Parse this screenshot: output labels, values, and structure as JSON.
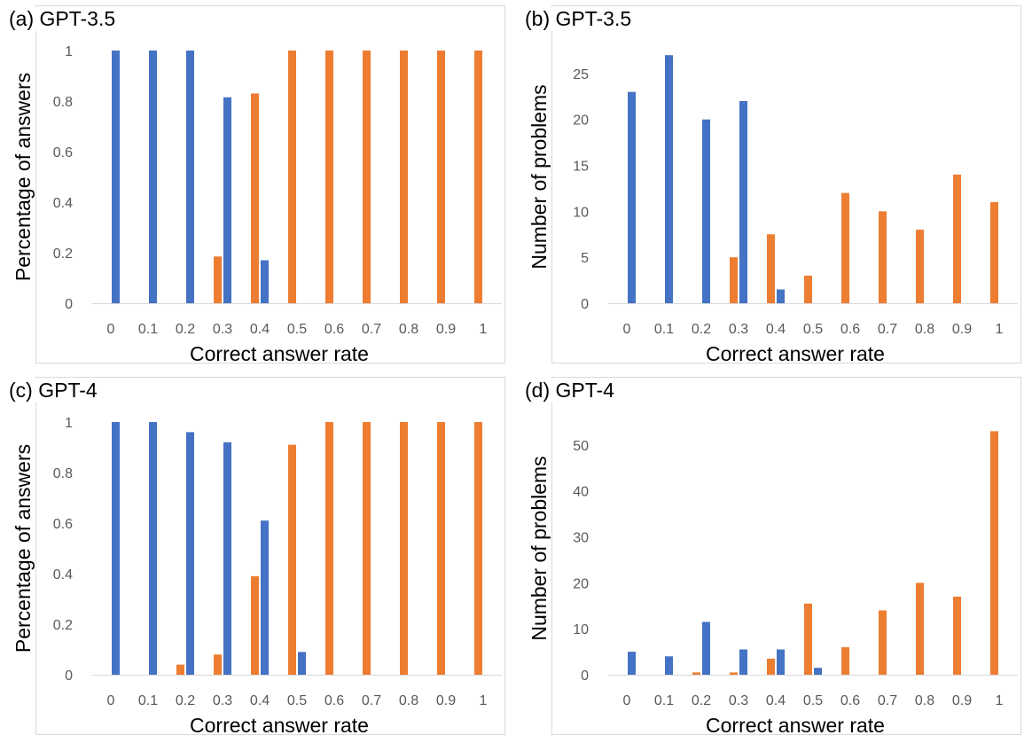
{
  "colors": {
    "blue": "#4472c4",
    "orange": "#ed7d31",
    "axis": "#d9d9d9"
  },
  "chart_data": [
    {
      "panel": "a",
      "type": "bar",
      "title": "(a) GPT-3.5",
      "xlabel": "Correct answer rate",
      "ylabel": "Percentage of answers",
      "categories": [
        "0",
        "0.1",
        "0.2",
        "0.3",
        "0.4",
        "0.5",
        "0.6",
        "0.7",
        "0.8",
        "0.9",
        "1"
      ],
      "yticks": [
        "0",
        "0.2",
        "0.4",
        "0.6",
        "0.8",
        "1"
      ],
      "ylim": [
        0,
        1
      ],
      "grid": false,
      "legend": "none",
      "series": [
        {
          "color": "#ed7d31",
          "values": [
            0,
            0,
            0,
            0.185,
            0.83,
            1,
            1,
            1,
            1,
            1,
            1
          ]
        },
        {
          "color": "#4472c4",
          "values": [
            1,
            1,
            1,
            0.815,
            0.17,
            0,
            0,
            0,
            0,
            0,
            0
          ]
        }
      ]
    },
    {
      "panel": "b",
      "type": "bar",
      "title": "(b) GPT-3.5",
      "xlabel": "Correct answer rate",
      "ylabel": "Number of problems",
      "categories": [
        "0",
        "0.1",
        "0.2",
        "0.3",
        "0.4",
        "0.5",
        "0.6",
        "0.7",
        "0.8",
        "0.9",
        "1"
      ],
      "yticks": [
        "0",
        "5",
        "10",
        "15",
        "20",
        "25"
      ],
      "ylim": [
        0,
        27.5
      ],
      "grid": false,
      "legend": "none",
      "series": [
        {
          "color": "#ed7d31",
          "values": [
            0,
            0,
            0,
            5,
            7.5,
            3,
            12,
            10,
            8,
            14,
            11
          ]
        },
        {
          "color": "#4472c4",
          "values": [
            23,
            27,
            20,
            22,
            1.5,
            0,
            0,
            0,
            0,
            0,
            0
          ]
        }
      ]
    },
    {
      "panel": "c",
      "type": "bar",
      "title": "(c) GPT-4",
      "xlabel": "Correct answer rate",
      "ylabel": "Percentage of answers",
      "categories": [
        "0",
        "0.1",
        "0.2",
        "0.3",
        "0.4",
        "0.5",
        "0.6",
        "0.7",
        "0.8",
        "0.9",
        "1"
      ],
      "yticks": [
        "0",
        "0.2",
        "0.4",
        "0.6",
        "0.8",
        "1"
      ],
      "ylim": [
        0,
        1
      ],
      "grid": false,
      "legend": "none",
      "series": [
        {
          "color": "#ed7d31",
          "values": [
            0,
            0,
            0.04,
            0.08,
            0.39,
            0.91,
            1,
            1,
            1,
            1,
            1
          ]
        },
        {
          "color": "#4472c4",
          "values": [
            1,
            1,
            0.96,
            0.92,
            0.61,
            0.09,
            0,
            0,
            0,
            0,
            0
          ]
        }
      ]
    },
    {
      "panel": "d",
      "type": "bar",
      "title": "(d) GPT-4",
      "xlabel": "Correct answer rate",
      "ylabel": "Number of problems",
      "categories": [
        "0",
        "0.1",
        "0.2",
        "0.3",
        "0.4",
        "0.5",
        "0.6",
        "0.7",
        "0.8",
        "0.9",
        "1"
      ],
      "yticks": [
        "0",
        "10",
        "20",
        "30",
        "40",
        "50"
      ],
      "ylim": [
        0,
        55
      ],
      "grid": false,
      "legend": "none",
      "series": [
        {
          "color": "#ed7d31",
          "values": [
            0,
            0,
            0.5,
            0.5,
            3.5,
            15.5,
            6,
            14,
            20,
            17,
            53
          ]
        },
        {
          "color": "#4472c4",
          "values": [
            5,
            4,
            11.5,
            5.5,
            5.5,
            1.5,
            0,
            0,
            0,
            0,
            0
          ]
        }
      ]
    }
  ]
}
